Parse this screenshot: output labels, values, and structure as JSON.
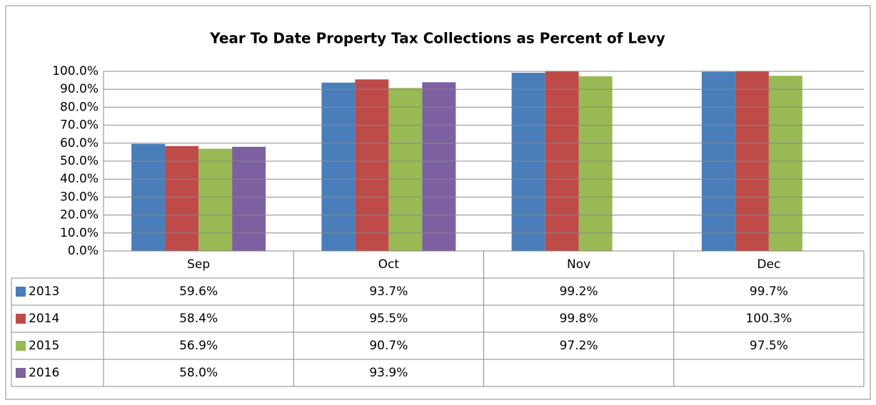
{
  "chart_data": {
    "type": "bar",
    "title": "Year To Date Property Tax Collections as Percent of Levy",
    "categories": [
      "Sep",
      "Oct",
      "Nov",
      "Dec"
    ],
    "series": [
      {
        "name": "2013",
        "color": "#4a7ebb",
        "values": [
          59.6,
          93.7,
          99.2,
          99.7
        ],
        "value_labels": [
          "59.6%",
          "93.7%",
          "99.2%",
          "99.7%"
        ]
      },
      {
        "name": "2014",
        "color": "#be4b48",
        "values": [
          58.4,
          95.5,
          99.8,
          100.3
        ],
        "value_labels": [
          "58.4%",
          "95.5%",
          "99.8%",
          "100.3%"
        ]
      },
      {
        "name": "2015",
        "color": "#98b954",
        "values": [
          56.9,
          90.7,
          97.2,
          97.5
        ],
        "value_labels": [
          "56.9%",
          "90.7%",
          "97.2%",
          "97.5%"
        ]
      },
      {
        "name": "2016",
        "color": "#7d60a0",
        "values": [
          58.0,
          93.9,
          null,
          null
        ],
        "value_labels": [
          "58.0%",
          "93.9%",
          null,
          null
        ]
      }
    ],
    "ylim": [
      0,
      100
    ],
    "yticks": [
      {
        "value": 0,
        "label": "0.0%"
      },
      {
        "value": 10,
        "label": "10.0%"
      },
      {
        "value": 20,
        "label": "20.0%"
      },
      {
        "value": 30,
        "label": "30.0%"
      },
      {
        "value": 40,
        "label": "40.0%"
      },
      {
        "value": 50,
        "label": "50.0%"
      },
      {
        "value": 60,
        "label": "60.0%"
      },
      {
        "value": 70,
        "label": "70.0%"
      },
      {
        "value": 80,
        "label": "80.0%"
      },
      {
        "value": 90,
        "label": "90.0%"
      },
      {
        "value": 100,
        "label": "100.0%"
      }
    ],
    "grid": true
  }
}
